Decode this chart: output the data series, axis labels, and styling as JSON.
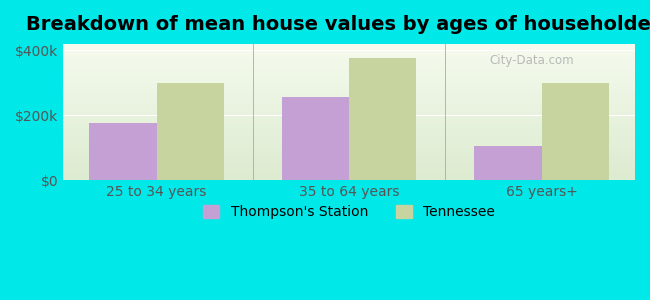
{
  "title": "Breakdown of mean house values by ages of householders",
  "categories": [
    "25 to 34 years",
    "35 to 64 years",
    "65 years+"
  ],
  "thompson_values": [
    175000,
    255000,
    105000
  ],
  "tennessee_values": [
    300000,
    375000,
    300000
  ],
  "thompson_color": "#c4a0d4",
  "tennessee_color": "#c8d4a0",
  "ylim": [
    0,
    420000
  ],
  "yticks": [
    0,
    200000,
    400000
  ],
  "ytick_labels": [
    "$0",
    "$200k",
    "$400k"
  ],
  "background_color": "#00e8e8",
  "plot_bg_gradient_top": "#ddebd0",
  "plot_bg_gradient_bottom": "#f5fbee",
  "legend_labels": [
    "Thompson's Station",
    "Tennessee"
  ],
  "bar_width": 0.35,
  "title_fontsize": 14,
  "tick_fontsize": 10,
  "legend_fontsize": 10
}
